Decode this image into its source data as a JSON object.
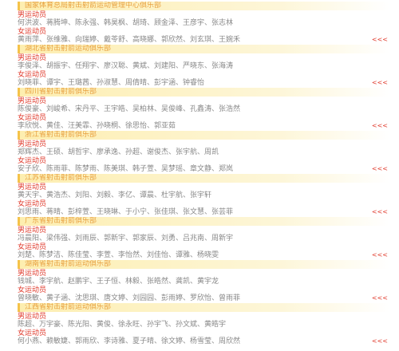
{
  "sections": [
    {
      "title": "国家体育总局射击射箭运动管理中心俱乐部",
      "groups": [
        {
          "label": "男运动员",
          "names": "何洪波、蒋腾坤、陈永强、韩昊枫、胡琦、顾金泽、王彦宇、张志林"
        },
        {
          "label": "女运动员",
          "names": "黄雨萍、张维雅、向瑞婷、戴苓舒、高晓娜、郭欣然、刘玄琪、王婉禾"
        }
      ],
      "more": "<<<"
    },
    {
      "title": "湖北省射击射箭运动俱乐部",
      "groups": [
        {
          "label": "男运动员",
          "names": "李俊泽、胡振宇、任翔宇、廖汉聪、黄斌、刘建阳、严晓东、张海涛"
        },
        {
          "label": "女运动员",
          "names": "刘晓菲、谭宇、王璐茜、孙淑慧、周倩晴、彭宇涵、钟睿怡"
        }
      ],
      "more": "<<<"
    },
    {
      "title": "四川省射击射箭俱乐部",
      "groups": [
        {
          "label": "男运动员",
          "names": "陈俊豪、刘峻希、宋丹平、王宇皓、吴柏林、吴俊峰、孔鑫涛、张浩然"
        },
        {
          "label": "女运动员",
          "names": "李欣悦、黄佳、汪美霏、孙晓桐、徐思怡、郭亚茹"
        }
      ],
      "more": "<<<"
    },
    {
      "title": "浙江省射击射箭俱乐部",
      "groups": [
        {
          "label": "男运动员",
          "names": "郑辉杰、王硕、胡哲宇、廖承逸、孙超、谢俊杰、张宇航、周凯"
        },
        {
          "label": "女运动员",
          "names": "安子欣、陈雨菲、陈梦雨、陈美琪、韩子萱、吴梦瑶、章文静、郑岚"
        }
      ],
      "more": "<<<"
    },
    {
      "title": "江苏省射击射箭俱乐部",
      "groups": [
        {
          "label": "男运动员",
          "names": "黄天宇、黄浩杰、刘阳、刘毅、李亿、谭晨、杜宇航、张宇轩"
        },
        {
          "label": "女运动员",
          "names": "刘思雨、蒋晴、彭梓萱、王晓琳、于小宁、张佳琪、张文慧、张芸菲"
        }
      ],
      "more": "<<<"
    },
    {
      "title": "广东省射击射箭俱乐部",
      "groups": [
        {
          "label": "男运动员",
          "names": "冯晨阳、梁伟强、刘雨辰、郭新宇、郭家辰、刘勇、吕兆南、周新宇"
        },
        {
          "label": "女运动员",
          "names": "刘楚、陈梦洁、陈佳莹、李萱、李怡然、刘佳怡、谭雅、杨晓雯"
        }
      ],
      "more": "<<<"
    },
    {
      "title": "湖南省射击射箭运动俱乐部",
      "groups": [
        {
          "label": "男运动员",
          "names": "钱城、李宇航、赵鹏宇、王子恒、林毅、张皓然、龚凯、黄宇龙"
        },
        {
          "label": "女运动员",
          "names": "曾晓敏、黄子涵、沈思琪、唐文婷、刘园园、彭雨婷、罗欣怡、曾雨菲"
        }
      ],
      "more": "<<<"
    },
    {
      "title": "江西省射击射箭运动俱乐部",
      "groups": [
        {
          "label": "男运动员",
          "names": "陈超、万宇豪、陈光阳、黄俊、徐永旺、孙宇飞、孙文斌、黄皓宇"
        },
        {
          "label": "女运动员",
          "names": "何小燕、赖敏婕、郭雨欣、李诗雅、夏子晴、徐文婷、杨雪莹、周欣然"
        }
      ],
      "more": "<<<"
    }
  ]
}
